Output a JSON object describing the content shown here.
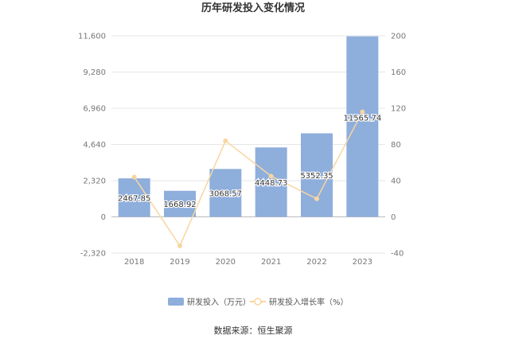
{
  "chart_data": {
    "type": "bar",
    "title": "历年研发投入变化情况",
    "categories": [
      "2018",
      "2019",
      "2020",
      "2021",
      "2022",
      "2023"
    ],
    "series": [
      {
        "name": "研发投入（万元）",
        "type": "bar",
        "axis": "left",
        "color": "#8eaedc",
        "values": [
          2467.85,
          1668.92,
          3068.57,
          4448.73,
          5352.35,
          11565.74
        ],
        "labels": [
          "2467.85",
          "1668.92",
          "3068.57",
          "4448.73",
          "5352.35",
          "11565.74"
        ]
      },
      {
        "name": "研发投入增长率（%）",
        "type": "line",
        "axis": "right",
        "color": "#f8d6a0",
        "values": [
          44,
          -32,
          84,
          45,
          20,
          116
        ]
      }
    ],
    "y_left": {
      "min": -2320,
      "max": 11600,
      "ticks": [
        "-2,320",
        "0",
        "2,320",
        "4,640",
        "6,960",
        "9,280",
        "11,600"
      ],
      "tick_values": [
        -2320,
        0,
        2320,
        4640,
        6960,
        9280,
        11600
      ]
    },
    "y_right": {
      "min": -40,
      "max": 200,
      "ticks": [
        "-40",
        "0",
        "40",
        "80",
        "120",
        "160",
        "200"
      ],
      "tick_values": [
        -40,
        0,
        40,
        80,
        120,
        160,
        200
      ]
    },
    "grid": true,
    "legend_position": "bottom",
    "source": "数据来源：恒生聚源"
  }
}
